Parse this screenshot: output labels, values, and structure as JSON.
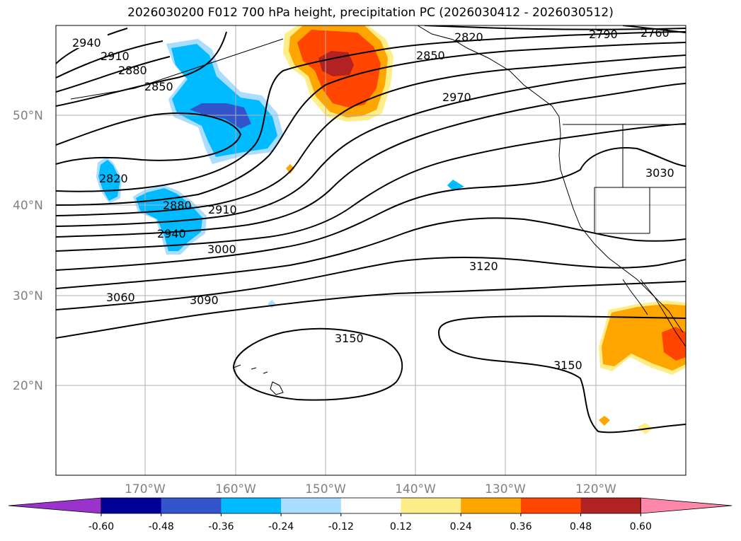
{
  "title": "2026030200 F012 700 hPa height, precipitation PC (2026030412 - 2026030512)",
  "lat_labels": [
    "50°N",
    "40°N",
    "30°N",
    "20°N"
  ],
  "lon_labels": [
    "170°W",
    "160°W",
    "150°W",
    "140°W",
    "130°W",
    "120°W"
  ],
  "contour_labels": [
    "2940",
    "2910",
    "2880",
    "2850",
    "2820",
    "2880",
    "2940",
    "2910",
    "3000",
    "3060",
    "3090",
    "3120",
    "3150",
    "3150",
    "2850",
    "2820",
    "2970",
    "2790",
    "2760",
    "3030"
  ],
  "colorbar": {
    "ticks": [
      "-0.60",
      "-0.48",
      "-0.36",
      "-0.24",
      "-0.12",
      "0.12",
      "0.24",
      "0.36",
      "0.48",
      "0.60"
    ],
    "colors": [
      "#9933cc",
      "#000099",
      "#3355cc",
      "#00bbff",
      "#aaddff",
      "#ffffff",
      "#ffee88",
      "#ffa500",
      "#ff4500",
      "#b22222",
      "#ff88aa"
    ]
  },
  "colors": {
    "neg_strong": "#3355cc",
    "neg_mid": "#00bbff",
    "neg_weak": "#aaddff",
    "pos_weak": "#ffee88",
    "pos_mid": "#ffa500",
    "pos_strong": "#ff4500",
    "pos_max": "#b22222"
  }
}
